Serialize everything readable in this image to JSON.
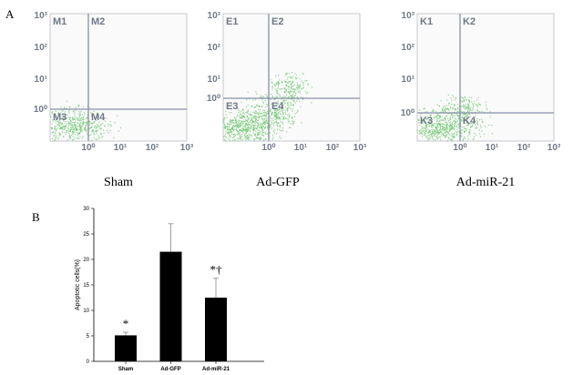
{
  "panel_a": {
    "label": "A",
    "yticks": [
      "10³",
      "10²",
      "10¹",
      "10⁰"
    ],
    "xticks": [
      "10⁰",
      "10¹",
      "10²",
      "10³"
    ],
    "plots": [
      {
        "quadrants": [
          "M1",
          "M2",
          "M3",
          "M4"
        ],
        "caption": "Sham"
      },
      {
        "quadrants": [
          "E1",
          "E2",
          "E3",
          "E4"
        ],
        "caption": "Ad-GFP"
      },
      {
        "quadrants": [
          "K1",
          "K2",
          "K3",
          "K4"
        ],
        "caption": "Ad-miR-21"
      }
    ]
  },
  "chart_data": {
    "type": "bar",
    "label": "B",
    "ylabel": "Apoptotic cells(%)",
    "categories": [
      "Sham",
      "Ad-GFP",
      "Ad-miR-21"
    ],
    "values": [
      5.1,
      21.5,
      12.5
    ],
    "errors": [
      0.6,
      5.5,
      3.8
    ],
    "annotations": [
      "*",
      null,
      "*†"
    ],
    "color": "#000000",
    "ylim": [
      0,
      30
    ],
    "yticks": [
      0,
      5,
      10,
      15,
      20,
      25,
      30
    ]
  }
}
